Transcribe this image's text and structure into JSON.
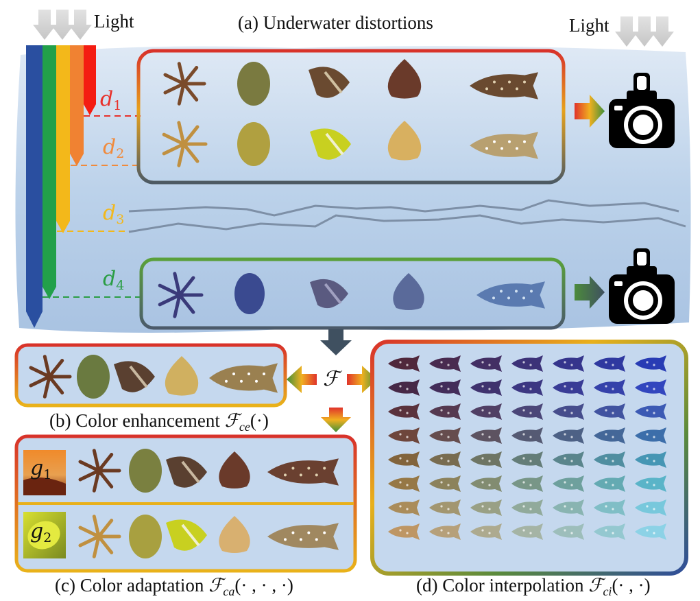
{
  "title": "(a) Underwater distortions",
  "light_left": "Light",
  "light_right": "Light",
  "depths": [
    {
      "symbol": "d",
      "index": "1",
      "color": "#e8302a"
    },
    {
      "symbol": "d",
      "index": "2",
      "color": "#f08a3c"
    },
    {
      "symbol": "d",
      "index": "3",
      "color": "#f2b81c"
    },
    {
      "symbol": "d",
      "index": "4",
      "color": "#2a9d44"
    }
  ],
  "operator": "ℱ",
  "panels": {
    "b": {
      "prefix": "(b) Color enhancement ",
      "op": "ℱ",
      "sub": "ce",
      "args": "(·)"
    },
    "c": {
      "prefix": "(c) Color adaptation ",
      "op": "ℱ",
      "sub": "ca",
      "args": "(· , · , ·)"
    },
    "d": {
      "prefix": "(d) Color interpolation ",
      "op": "ℱ",
      "sub": "ci",
      "args": "(· , ·)"
    }
  },
  "guides": [
    {
      "symbol": "g",
      "index": "1"
    },
    {
      "symbol": "g",
      "index": "2"
    }
  ],
  "colors": {
    "light_bar_blue": "#2a4fa0",
    "light_bar_green": "#22a04a",
    "light_bar_yellow": "#f3b81a",
    "light_bar_orange": "#f08232",
    "light_bar_red": "#f41c12",
    "water": "#b9cfe6",
    "arrow_dark": "#3f5060"
  }
}
